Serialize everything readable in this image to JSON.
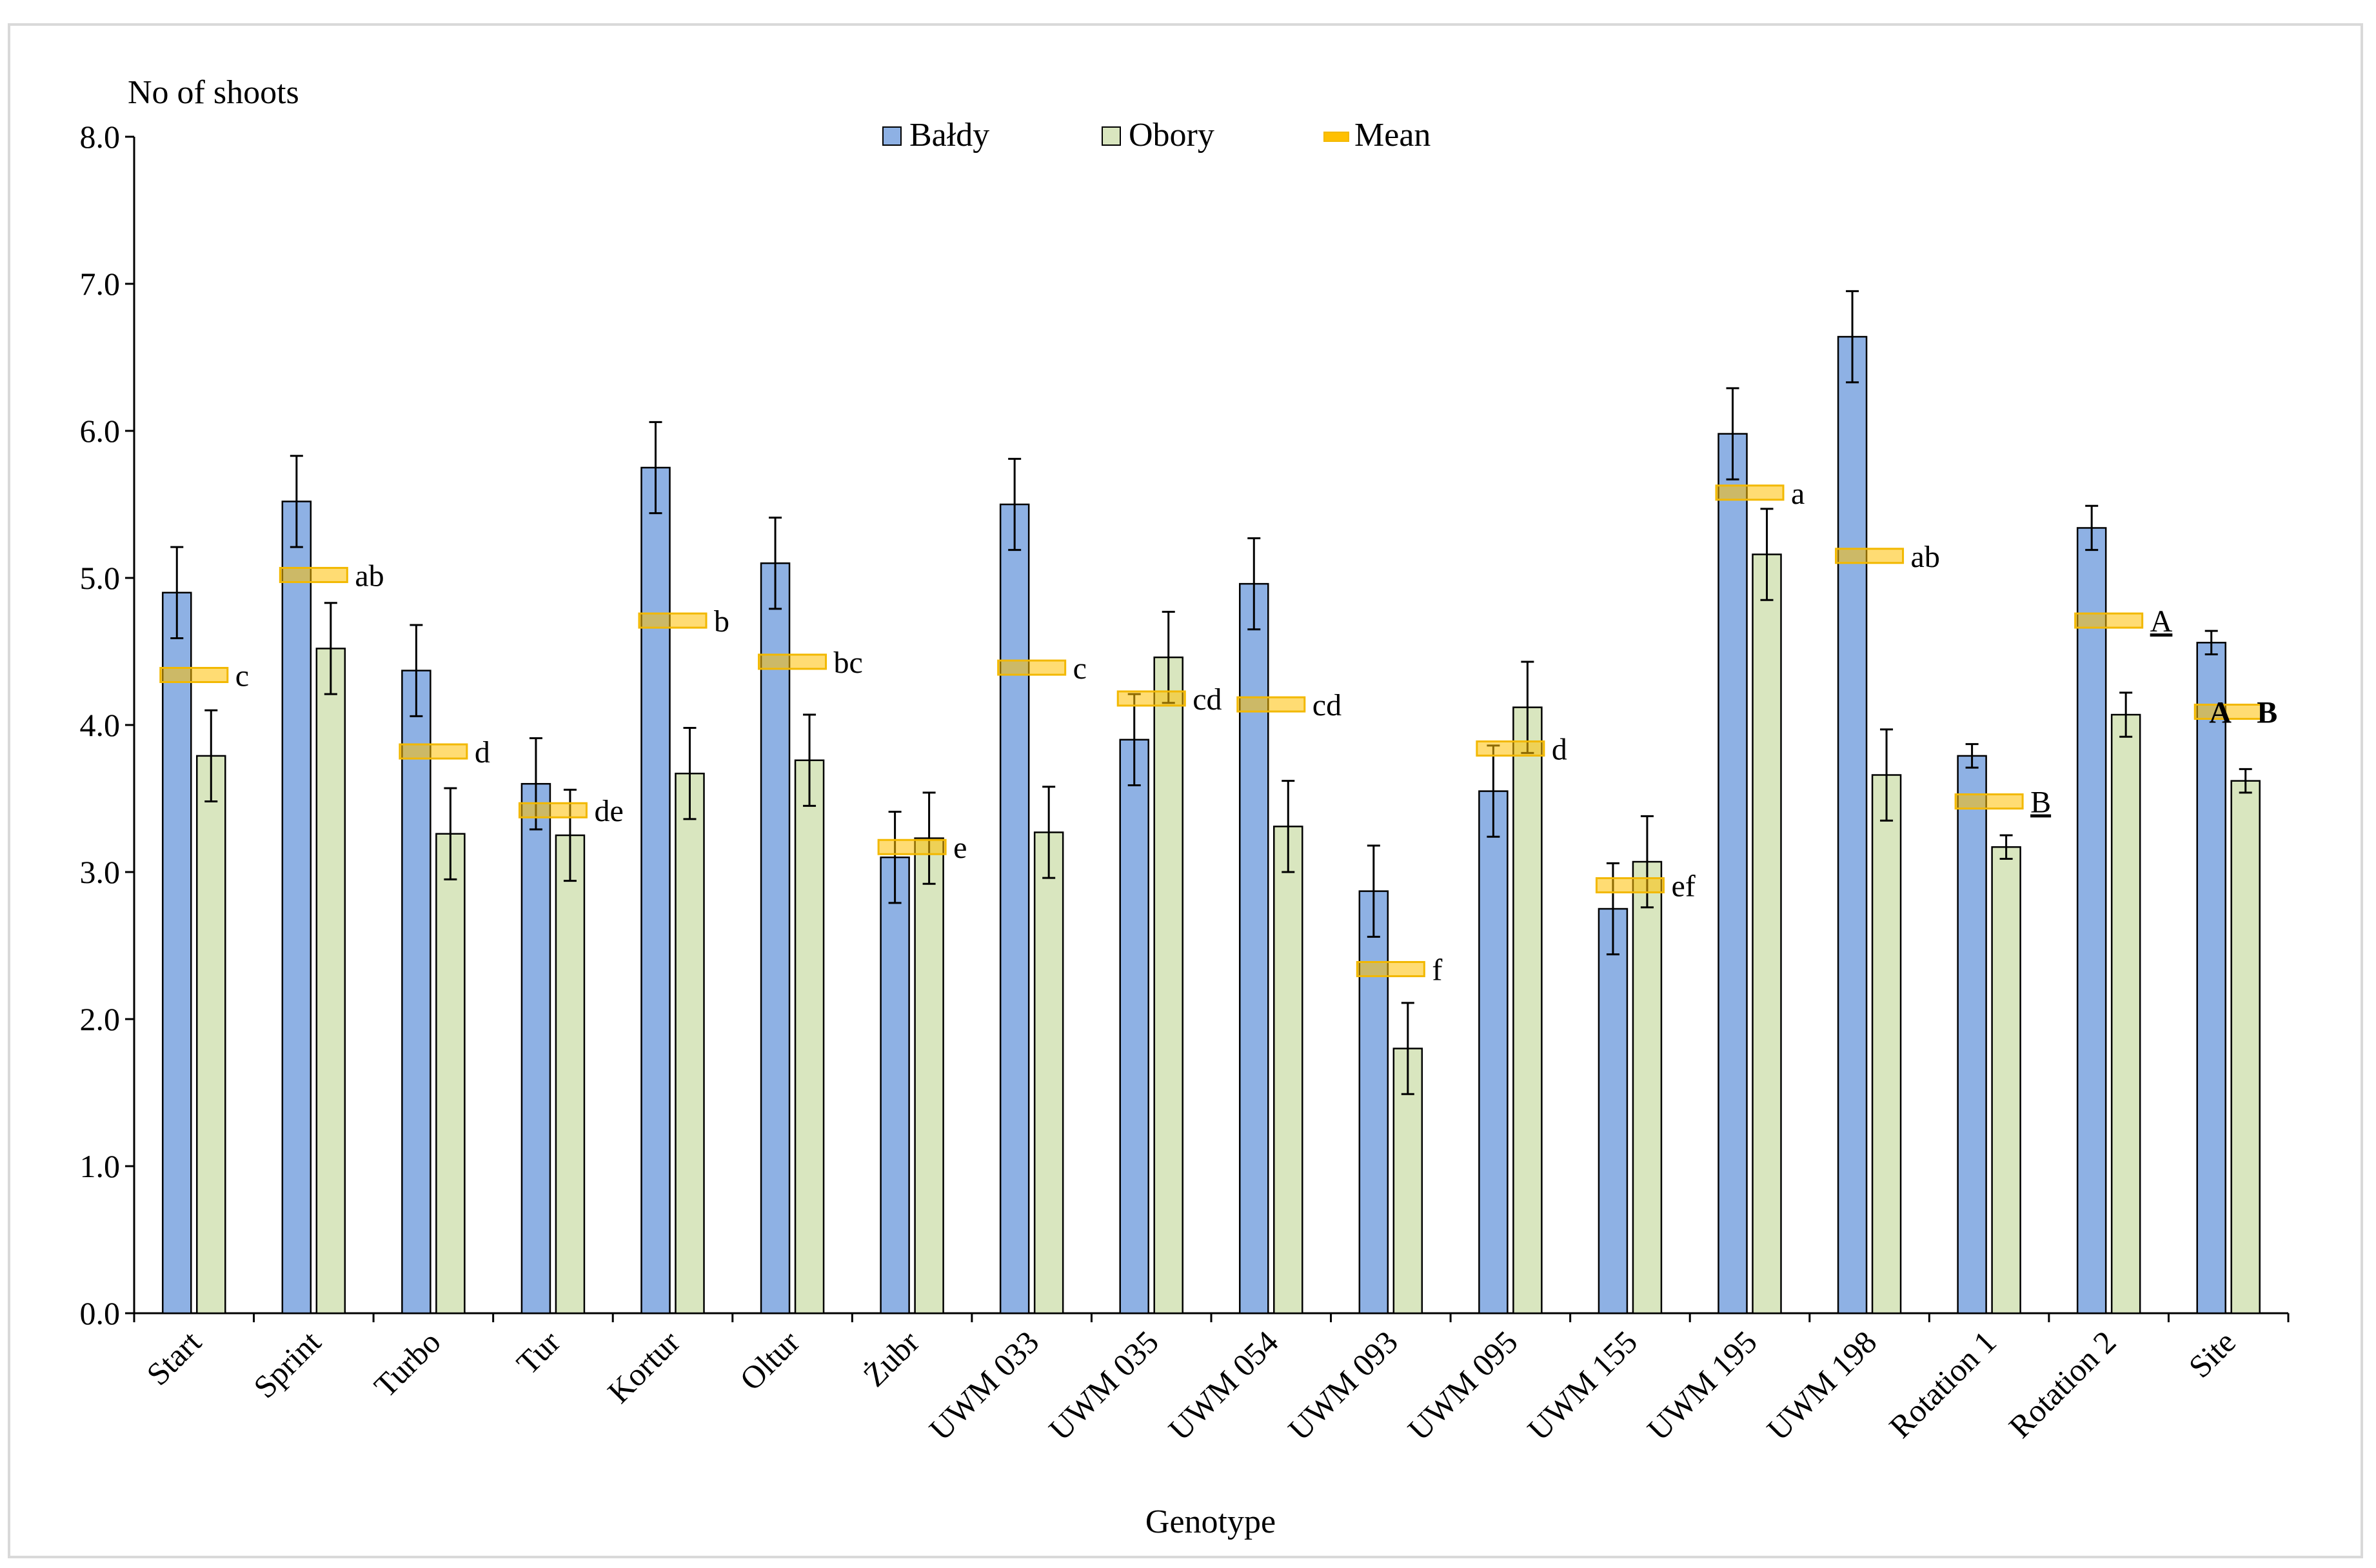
{
  "chart_data": {
    "type": "bar",
    "ylabel": "No of shoots",
    "xlabel": "Genotype",
    "ylim": [
      0,
      8
    ],
    "yticks": [
      "0.0",
      "1.0",
      "2.0",
      "3.0",
      "4.0",
      "5.0",
      "6.0",
      "7.0",
      "8.0"
    ],
    "grid": false,
    "legend_position": "top-center",
    "categories": [
      "Start",
      "Sprint",
      "Turbo",
      "Tur",
      "Kortur",
      "Oltur",
      "Żubr",
      "UWM 033",
      "UWM 035",
      "UWM 054",
      "UWM 093",
      "UWM 095",
      "UWM 155",
      "UWM 195",
      "UWM 198",
      "Rotation 1",
      "Rotation 2",
      "Site"
    ],
    "series": [
      {
        "name": "Bałdy",
        "color": "#8EB1E4",
        "values": [
          4.9,
          5.52,
          4.37,
          3.6,
          5.75,
          5.1,
          3.1,
          5.5,
          3.9,
          4.96,
          2.87,
          3.55,
          2.75,
          5.98,
          6.64,
          3.79,
          5.34,
          4.56
        ],
        "errors": [
          0.31,
          0.31,
          0.31,
          0.31,
          0.31,
          0.31,
          0.31,
          0.31,
          0.31,
          0.31,
          0.31,
          0.31,
          0.31,
          0.31,
          0.31,
          0.08,
          0.15,
          0.08
        ]
      },
      {
        "name": "Obory",
        "color": "#D9E6BF",
        "values": [
          3.79,
          4.52,
          3.26,
          3.25,
          3.67,
          3.76,
          3.23,
          3.27,
          4.46,
          3.31,
          1.8,
          4.12,
          3.07,
          5.16,
          3.66,
          3.17,
          4.07,
          3.62
        ],
        "errors": [
          0.31,
          0.31,
          0.31,
          0.31,
          0.31,
          0.31,
          0.31,
          0.31,
          0.31,
          0.31,
          0.31,
          0.31,
          0.31,
          0.31,
          0.31,
          0.08,
          0.15,
          0.08
        ]
      }
    ],
    "mean": {
      "name": "Mean",
      "color": "#FFC000",
      "values": [
        4.34,
        5.02,
        3.82,
        3.42,
        4.71,
        4.43,
        3.17,
        4.39,
        4.18,
        4.14,
        2.34,
        3.84,
        2.91,
        5.58,
        5.15,
        3.48,
        4.71,
        4.09
      ]
    },
    "annotations": [
      "c",
      "ab",
      "d",
      "de",
      "b",
      "bc",
      "e",
      "c",
      "cd",
      "cd",
      "f",
      "d",
      "ef",
      "a",
      "ab",
      "B",
      "A",
      "A B"
    ],
    "underlined_annotations": [
      "B",
      "A"
    ],
    "bold_annotations": [
      "A B"
    ]
  }
}
